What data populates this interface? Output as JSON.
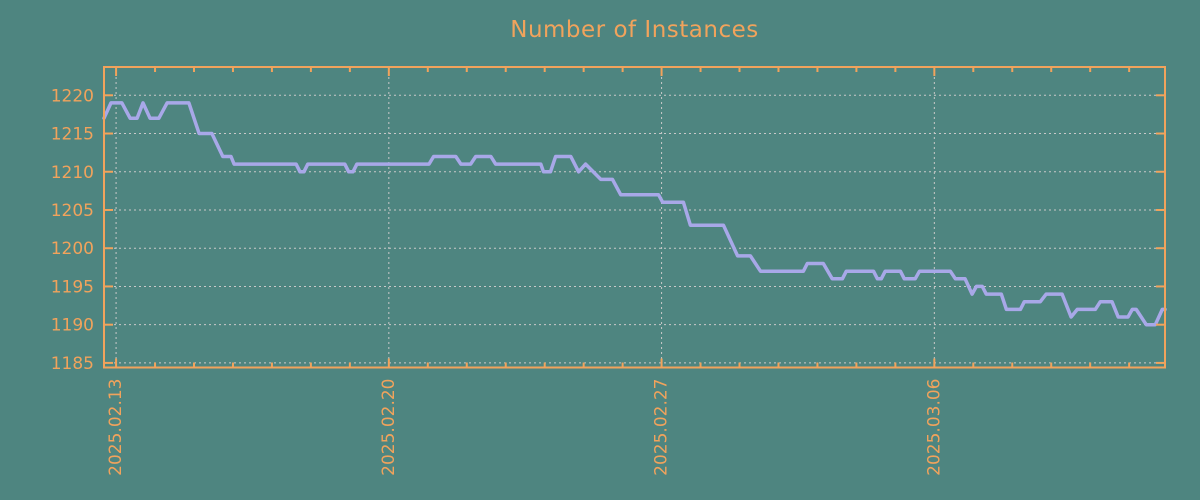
{
  "chart_data": {
    "type": "line",
    "title": "Number of Instances",
    "legend": "none",
    "grid": true,
    "x_axis": {
      "kind": "date",
      "tick_labels": [
        "2025.02.13",
        "2025.02.20",
        "2025.02.27",
        "2025.03.06"
      ],
      "tick_days": [
        0,
        7,
        14,
        21
      ],
      "minor_tick_interval_days": 1,
      "range_days": [
        -0.31,
        26.92
      ],
      "label_rotation_degrees": -90
    },
    "y_axis": {
      "tick_labels": [
        "1185",
        "1190",
        "1195",
        "1200",
        "1205",
        "1210",
        "1215",
        "1220"
      ],
      "tick_values": [
        1185,
        1190,
        1195,
        1200,
        1205,
        1210,
        1215,
        1220
      ],
      "range": [
        1184.4,
        1223.7
      ]
    },
    "series": [
      {
        "name": "instances",
        "points": [
          [
            -0.31,
            1217
          ],
          [
            -0.13,
            1219
          ],
          [
            0.15,
            1219
          ],
          [
            0.36,
            1217
          ],
          [
            0.54,
            1217
          ],
          [
            0.69,
            1219
          ],
          [
            0.87,
            1217
          ],
          [
            1.1,
            1217
          ],
          [
            1.31,
            1219
          ],
          [
            1.87,
            1219
          ],
          [
            2.13,
            1215
          ],
          [
            2.46,
            1215
          ],
          [
            2.74,
            1212
          ],
          [
            2.95,
            1212
          ],
          [
            3.03,
            1211
          ],
          [
            4.62,
            1211
          ],
          [
            4.72,
            1210
          ],
          [
            4.82,
            1210
          ],
          [
            4.92,
            1211
          ],
          [
            5.87,
            1211
          ],
          [
            5.97,
            1210
          ],
          [
            6.08,
            1210
          ],
          [
            6.18,
            1211
          ],
          [
            8.03,
            1211
          ],
          [
            8.15,
            1212
          ],
          [
            8.72,
            1212
          ],
          [
            8.85,
            1211
          ],
          [
            9.1,
            1211
          ],
          [
            9.23,
            1212
          ],
          [
            9.62,
            1212
          ],
          [
            9.74,
            1211
          ],
          [
            10.9,
            1211
          ],
          [
            10.97,
            1210
          ],
          [
            11.15,
            1210
          ],
          [
            11.28,
            1212
          ],
          [
            11.67,
            1212
          ],
          [
            11.87,
            1210
          ],
          [
            12.05,
            1211
          ],
          [
            12.44,
            1209
          ],
          [
            12.74,
            1209
          ],
          [
            12.95,
            1207
          ],
          [
            13.92,
            1207
          ],
          [
            14.03,
            1206
          ],
          [
            14.56,
            1206
          ],
          [
            14.74,
            1203
          ],
          [
            15.59,
            1203
          ],
          [
            15.95,
            1199
          ],
          [
            16.28,
            1199
          ],
          [
            16.54,
            1197
          ],
          [
            17.64,
            1197
          ],
          [
            17.74,
            1198
          ],
          [
            18.15,
            1198
          ],
          [
            18.38,
            1196
          ],
          [
            18.64,
            1196
          ],
          [
            18.74,
            1197
          ],
          [
            19.44,
            1197
          ],
          [
            19.54,
            1196
          ],
          [
            19.64,
            1196
          ],
          [
            19.74,
            1197
          ],
          [
            20.13,
            1197
          ],
          [
            20.23,
            1196
          ],
          [
            20.51,
            1196
          ],
          [
            20.62,
            1197
          ],
          [
            21.41,
            1197
          ],
          [
            21.54,
            1196
          ],
          [
            21.79,
            1196
          ],
          [
            21.97,
            1194
          ],
          [
            22.08,
            1195
          ],
          [
            22.23,
            1195
          ],
          [
            22.33,
            1194
          ],
          [
            22.72,
            1194
          ],
          [
            22.85,
            1192
          ],
          [
            23.21,
            1192
          ],
          [
            23.31,
            1193
          ],
          [
            23.72,
            1193
          ],
          [
            23.87,
            1194
          ],
          [
            24.28,
            1194
          ],
          [
            24.51,
            1191
          ],
          [
            24.67,
            1192
          ],
          [
            25.13,
            1192
          ],
          [
            25.26,
            1193
          ],
          [
            25.56,
            1193
          ],
          [
            25.72,
            1191
          ],
          [
            25.97,
            1191
          ],
          [
            26.08,
            1192
          ],
          [
            26.18,
            1192
          ],
          [
            26.44,
            1190
          ],
          [
            26.67,
            1190
          ],
          [
            26.85,
            1192
          ],
          [
            26.92,
            1192
          ]
        ]
      }
    ]
  },
  "colors": {
    "background": "#4e8580",
    "axis": "#f1a35c",
    "text": "#f1a35c",
    "line": "#a8a8e8",
    "grid": "#c9c9c9"
  }
}
